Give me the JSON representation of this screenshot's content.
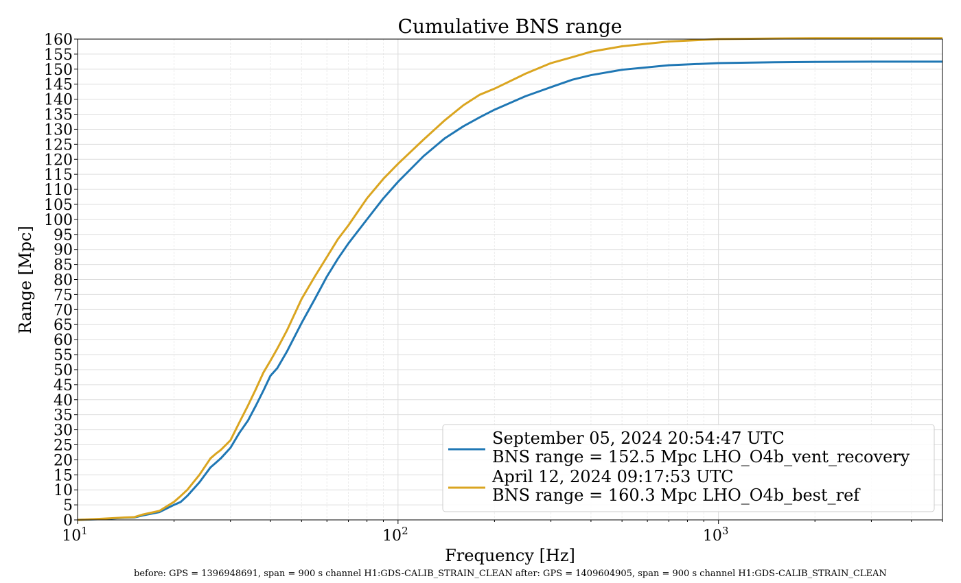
{
  "chart_data": {
    "type": "line",
    "title": "Cumulative BNS range",
    "xlabel": "Frequency [Hz]",
    "ylabel": "Range [Mpc]",
    "xscale": "log",
    "xlim": [
      10,
      5000
    ],
    "ylim": [
      0,
      160
    ],
    "x_ticks": [
      {
        "value": 10,
        "base": "10",
        "exp": "1"
      },
      {
        "value": 100,
        "base": "10",
        "exp": "2"
      },
      {
        "value": 1000,
        "base": "10",
        "exp": "3"
      }
    ],
    "y_ticks": [
      0,
      5,
      10,
      15,
      20,
      25,
      30,
      35,
      40,
      45,
      50,
      55,
      60,
      65,
      70,
      75,
      80,
      85,
      90,
      95,
      100,
      105,
      110,
      115,
      120,
      125,
      130,
      135,
      140,
      145,
      150,
      155,
      160
    ],
    "grid": true,
    "legend_position": "lower-right",
    "series": [
      {
        "name": "September 05, 2024 20:54:47 UTC",
        "name_line2": "BNS range = 152.5 Mpc LHO_O4b_vent_recovery",
        "color": "#1f77b4",
        "points": [
          [
            10,
            0
          ],
          [
            12,
            0.3
          ],
          [
            14,
            0.7
          ],
          [
            15,
            0.8
          ],
          [
            16,
            1.5
          ],
          [
            18,
            2.6
          ],
          [
            20,
            5
          ],
          [
            21,
            6
          ],
          [
            22,
            8
          ],
          [
            24,
            12.5
          ],
          [
            26,
            17.5
          ],
          [
            27,
            19
          ],
          [
            28,
            20.5
          ],
          [
            30,
            24
          ],
          [
            32,
            29
          ],
          [
            34,
            33
          ],
          [
            36,
            38
          ],
          [
            38,
            43
          ],
          [
            40,
            48
          ],
          [
            42,
            50.5
          ],
          [
            45,
            56
          ],
          [
            50,
            65.5
          ],
          [
            55,
            73.5
          ],
          [
            60,
            81
          ],
          [
            65,
            87
          ],
          [
            70,
            92
          ],
          [
            80,
            100
          ],
          [
            90,
            107
          ],
          [
            100,
            112.5
          ],
          [
            120,
            121
          ],
          [
            140,
            127
          ],
          [
            160,
            131
          ],
          [
            180,
            134
          ],
          [
            200,
            136.5
          ],
          [
            250,
            141
          ],
          [
            300,
            144
          ],
          [
            350,
            146.5
          ],
          [
            400,
            148
          ],
          [
            500,
            149.8
          ],
          [
            700,
            151.3
          ],
          [
            1000,
            152
          ],
          [
            1500,
            152.3
          ],
          [
            2000,
            152.4
          ],
          [
            3000,
            152.5
          ],
          [
            5000,
            152.5
          ]
        ]
      },
      {
        "name": "April 12, 2024 09:17:53 UTC",
        "name_line2": "BNS range = 160.3 Mpc LHO_O4b_best_ref",
        "color": "#daa520",
        "points": [
          [
            10,
            0
          ],
          [
            12,
            0.4
          ],
          [
            14,
            0.8
          ],
          [
            15,
            0.9
          ],
          [
            16,
            1.8
          ],
          [
            18,
            3
          ],
          [
            20,
            6
          ],
          [
            21,
            8
          ],
          [
            22,
            10
          ],
          [
            24,
            15
          ],
          [
            26,
            20.5
          ],
          [
            27,
            22
          ],
          [
            28,
            23.3
          ],
          [
            30,
            26.5
          ],
          [
            32,
            32.5
          ],
          [
            34,
            38
          ],
          [
            36,
            43.5
          ],
          [
            38,
            49
          ],
          [
            40,
            53
          ],
          [
            42,
            57
          ],
          [
            45,
            63
          ],
          [
            50,
            73.5
          ],
          [
            55,
            81
          ],
          [
            60,
            87.5
          ],
          [
            65,
            93.5
          ],
          [
            70,
            98
          ],
          [
            80,
            107
          ],
          [
            90,
            113.5
          ],
          [
            100,
            118.5
          ],
          [
            120,
            126.5
          ],
          [
            140,
            133
          ],
          [
            160,
            138
          ],
          [
            180,
            141.5
          ],
          [
            200,
            143.5
          ],
          [
            250,
            148.5
          ],
          [
            300,
            152
          ],
          [
            350,
            154
          ],
          [
            400,
            155.8
          ],
          [
            500,
            157.6
          ],
          [
            700,
            159.2
          ],
          [
            1000,
            160
          ],
          [
            1500,
            160.2
          ],
          [
            2000,
            160.3
          ],
          [
            3000,
            160.3
          ],
          [
            5000,
            160.3
          ]
        ]
      }
    ]
  },
  "footer_text": "before: GPS = 1396948691, span = 900 s channel H1:GDS-CALIB_STRAIN_CLEAN after: GPS = 1409604905, span = 900 s channel H1:GDS-CALIB_STRAIN_CLEAN"
}
